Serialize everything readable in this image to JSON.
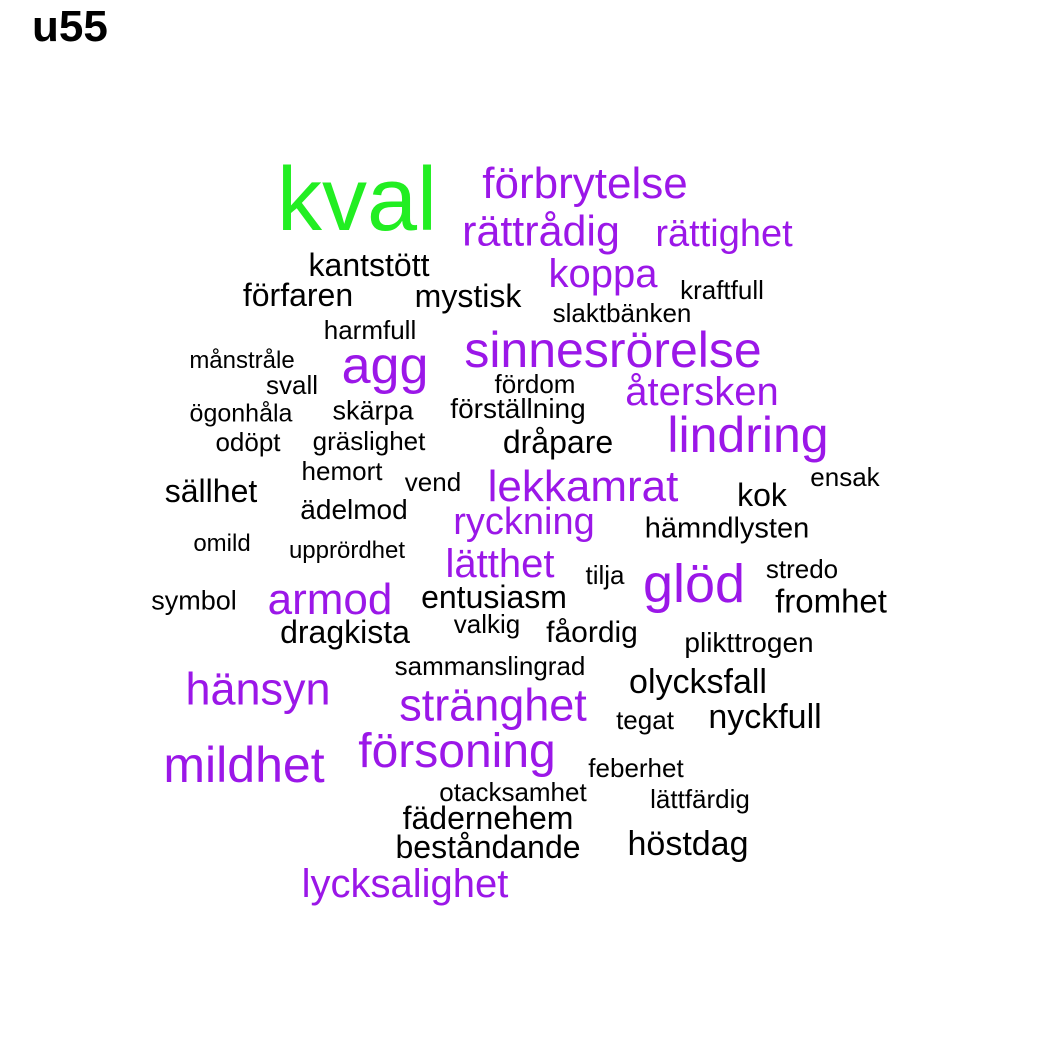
{
  "title": "u55",
  "colors": {
    "top_word": "#22ee22",
    "emphasis": "#9b17e8",
    "default": "#000000"
  },
  "words": [
    {
      "text": "kval",
      "color": "top_word"
    },
    {
      "text": "förbrytelse",
      "color": "emphasis"
    },
    {
      "text": "rättrådig",
      "color": "emphasis"
    },
    {
      "text": "rättighet",
      "color": "emphasis"
    },
    {
      "text": "kantstött",
      "color": "default"
    },
    {
      "text": "koppa",
      "color": "emphasis"
    },
    {
      "text": "förfaren",
      "color": "default"
    },
    {
      "text": "mystisk",
      "color": "default"
    },
    {
      "text": "kraftfull",
      "color": "default"
    },
    {
      "text": "slaktbänken",
      "color": "default"
    },
    {
      "text": "harmfull",
      "color": "default"
    },
    {
      "text": "sinnesrörelse",
      "color": "emphasis"
    },
    {
      "text": "agg",
      "color": "emphasis"
    },
    {
      "text": "månstråle",
      "color": "default"
    },
    {
      "text": "svall",
      "color": "default"
    },
    {
      "text": "fördom",
      "color": "default"
    },
    {
      "text": "återsken",
      "color": "emphasis"
    },
    {
      "text": "ögonhåla",
      "color": "default"
    },
    {
      "text": "skärpa",
      "color": "default"
    },
    {
      "text": "förställning",
      "color": "default"
    },
    {
      "text": "lindring",
      "color": "emphasis"
    },
    {
      "text": "odöpt",
      "color": "default"
    },
    {
      "text": "gräslighet",
      "color": "default"
    },
    {
      "text": "dråpare",
      "color": "default"
    },
    {
      "text": "hemort",
      "color": "default"
    },
    {
      "text": "vend",
      "color": "default"
    },
    {
      "text": "lekkamrat",
      "color": "emphasis"
    },
    {
      "text": "ensak",
      "color": "default"
    },
    {
      "text": "sällhet",
      "color": "default"
    },
    {
      "text": "kok",
      "color": "default"
    },
    {
      "text": "ädelmod",
      "color": "default"
    },
    {
      "text": "ryckning",
      "color": "emphasis"
    },
    {
      "text": "hämndlysten",
      "color": "default"
    },
    {
      "text": "omild",
      "color": "default"
    },
    {
      "text": "upprördhet",
      "color": "default"
    },
    {
      "text": "lätthet",
      "color": "emphasis"
    },
    {
      "text": "glöd",
      "color": "emphasis"
    },
    {
      "text": "stredo",
      "color": "default"
    },
    {
      "text": "tilja",
      "color": "default"
    },
    {
      "text": "symbol",
      "color": "default"
    },
    {
      "text": "armod",
      "color": "emphasis"
    },
    {
      "text": "entusiasm",
      "color": "default"
    },
    {
      "text": "fromhet",
      "color": "default"
    },
    {
      "text": "dragkista",
      "color": "default"
    },
    {
      "text": "valkig",
      "color": "default"
    },
    {
      "text": "fåordig",
      "color": "default"
    },
    {
      "text": "plikttrogen",
      "color": "default"
    },
    {
      "text": "sammanslingrad",
      "color": "default"
    },
    {
      "text": "hänsyn",
      "color": "emphasis"
    },
    {
      "text": "olycksfall",
      "color": "default"
    },
    {
      "text": "stränghet",
      "color": "emphasis"
    },
    {
      "text": "tegat",
      "color": "default"
    },
    {
      "text": "nyckfull",
      "color": "default"
    },
    {
      "text": "försoning",
      "color": "emphasis"
    },
    {
      "text": "mildhet",
      "color": "emphasis"
    },
    {
      "text": "feberhet",
      "color": "default"
    },
    {
      "text": "otacksamhet",
      "color": "default"
    },
    {
      "text": "lättfärdig",
      "color": "default"
    },
    {
      "text": "fädernehem",
      "color": "default"
    },
    {
      "text": "höstdag",
      "color": "default"
    },
    {
      "text": "beståndande",
      "color": "default"
    },
    {
      "text": "lycksalighet",
      "color": "emphasis"
    }
  ]
}
